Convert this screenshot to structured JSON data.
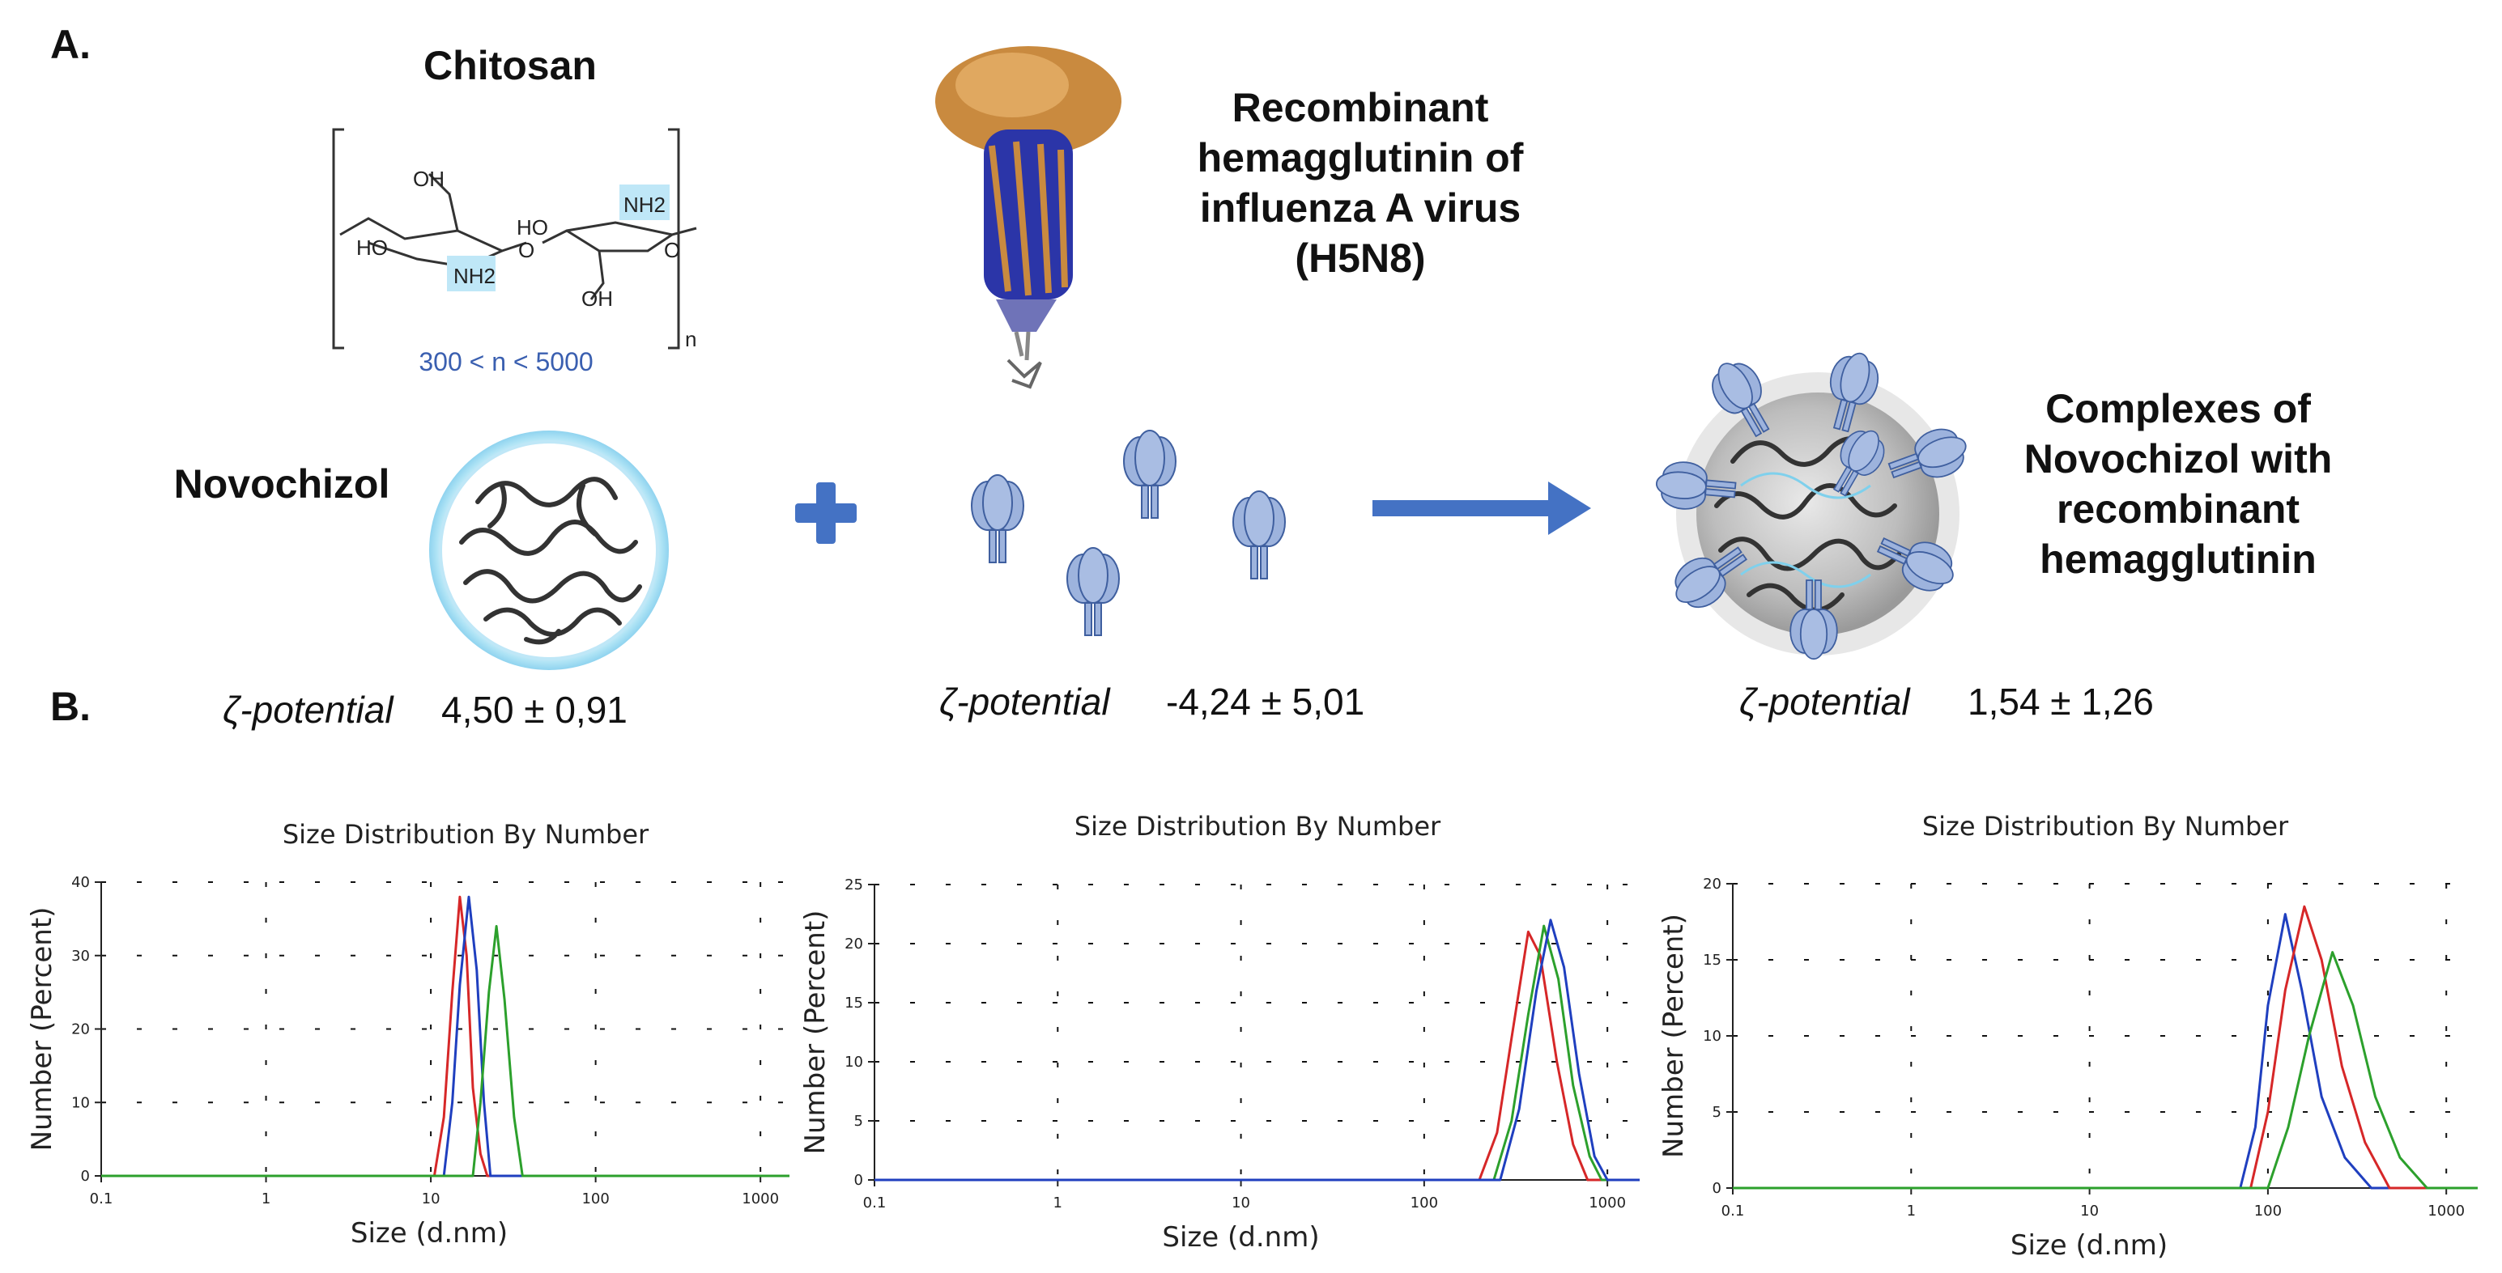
{
  "panel_a": {
    "label": "A.",
    "chitosan": {
      "title": "Chitosan",
      "repeat_label": "300 < n < 5000",
      "subscript": "n",
      "groups": [
        "OH",
        "HO",
        "NH2",
        "HO",
        "NH2",
        "OH",
        "O",
        "O"
      ]
    },
    "hemagglutinin_label": [
      "Recombinant",
      "hemagglutinin of",
      "influenza A virus",
      "(H5N8)"
    ],
    "novochizol_label": "Novochizol",
    "complex_label": [
      "Complexes of",
      "Novochizol with",
      "recombinant",
      "hemagglutinin"
    ],
    "zeta_label": "ζ-potential",
    "zeta_values": [
      "4,50 ± 0,91",
      "-4,24 ± 5,01",
      "1,54 ± 1,26"
    ],
    "colors": {
      "plus": "#4472c4",
      "arrow": "#4472c4",
      "protein": "#9db3dd",
      "protein_edge": "#3f5f9f",
      "glow": "#aee3f5"
    }
  },
  "panel_b": {
    "label": "B."
  },
  "chart_data": [
    {
      "type": "line",
      "title": "Size Distribution By Number",
      "xlabel": "Size (d.nm)",
      "ylabel": "Number (Percent)",
      "x_scale": "log",
      "xlim": [
        0.1,
        1500
      ],
      "ylim": [
        0,
        40
      ],
      "x_ticks": [
        "0.1",
        "1",
        "10",
        "100",
        "1000"
      ],
      "y_ticks": [
        "0",
        "10",
        "20",
        "30",
        "40"
      ],
      "grid": true,
      "series": [
        {
          "color": "#d62728",
          "points": [
            [
              10.5,
              0
            ],
            [
              12,
              8
            ],
            [
              13.5,
              25
            ],
            [
              15,
              38
            ],
            [
              16.5,
              30
            ],
            [
              18,
              12
            ],
            [
              20,
              3
            ],
            [
              22,
              0
            ]
          ]
        },
        {
          "color": "#1f3fbf",
          "points": [
            [
              12,
              0
            ],
            [
              13.5,
              10
            ],
            [
              15,
              26
            ],
            [
              17,
              38
            ],
            [
              19,
              28
            ],
            [
              21,
              10
            ],
            [
              23,
              0
            ]
          ]
        },
        {
          "color": "#2ca02c",
          "points": [
            [
              18,
              0
            ],
            [
              20,
              10
            ],
            [
              22.5,
              25
            ],
            [
              25,
              34
            ],
            [
              28,
              24
            ],
            [
              32,
              8
            ],
            [
              36,
              0
            ]
          ]
        }
      ]
    },
    {
      "type": "line",
      "title": "Size Distribution By Number",
      "xlabel": "Size (d.nm)",
      "ylabel": "Number (Percent)",
      "x_scale": "log",
      "xlim": [
        0.1,
        1500
      ],
      "ylim": [
        0,
        25
      ],
      "x_ticks": [
        "0.1",
        "1",
        "10",
        "100",
        "1000"
      ],
      "y_ticks": [
        "0",
        "5",
        "10",
        "15",
        "20",
        "25"
      ],
      "grid": true,
      "series": [
        {
          "color": "#d62728",
          "points": [
            [
              200,
              0
            ],
            [
              250,
              4
            ],
            [
              300,
              12
            ],
            [
              370,
              21
            ],
            [
              430,
              19
            ],
            [
              530,
              10
            ],
            [
              650,
              3
            ],
            [
              780,
              0
            ]
          ]
        },
        {
          "color": "#2ca02c",
          "points": [
            [
              240,
              0
            ],
            [
              300,
              5
            ],
            [
              370,
              14
            ],
            [
              450,
              21.5
            ],
            [
              540,
              17
            ],
            [
              650,
              8
            ],
            [
              800,
              2
            ],
            [
              930,
              0
            ]
          ]
        },
        {
          "color": "#1f3fbf",
          "points": [
            [
              260,
              0
            ],
            [
              330,
              6
            ],
            [
              410,
              16
            ],
            [
              490,
              22
            ],
            [
              580,
              18
            ],
            [
              700,
              9
            ],
            [
              850,
              2
            ],
            [
              1000,
              0
            ]
          ]
        }
      ]
    },
    {
      "type": "line",
      "title": "Size Distribution By Number",
      "xlabel": "Size (d.nm)",
      "ylabel": "Number (Percent)",
      "x_scale": "log",
      "xlim": [
        0.1,
        1500
      ],
      "ylim": [
        0,
        20
      ],
      "x_ticks": [
        "0.1",
        "1",
        "10",
        "100",
        "1000"
      ],
      "y_ticks": [
        "0",
        "5",
        "10",
        "15",
        "20"
      ],
      "grid": true,
      "series": [
        {
          "color": "#1f3fbf",
          "points": [
            [
              70,
              0
            ],
            [
              85,
              4
            ],
            [
              100,
              12
            ],
            [
              125,
              18
            ],
            [
              155,
              13
            ],
            [
              200,
              6
            ],
            [
              270,
              2
            ],
            [
              380,
              0
            ]
          ]
        },
        {
          "color": "#d62728",
          "points": [
            [
              80,
              0
            ],
            [
              100,
              5
            ],
            [
              125,
              13
            ],
            [
              160,
              18.5
            ],
            [
              200,
              15
            ],
            [
              260,
              8
            ],
            [
              350,
              3
            ],
            [
              480,
              0
            ]
          ]
        },
        {
          "color": "#2ca02c",
          "points": [
            [
              100,
              0
            ],
            [
              130,
              4
            ],
            [
              170,
              10
            ],
            [
              230,
              15.5
            ],
            [
              300,
              12
            ],
            [
              400,
              6
            ],
            [
              550,
              2
            ],
            [
              780,
              0
            ]
          ]
        }
      ]
    }
  ]
}
